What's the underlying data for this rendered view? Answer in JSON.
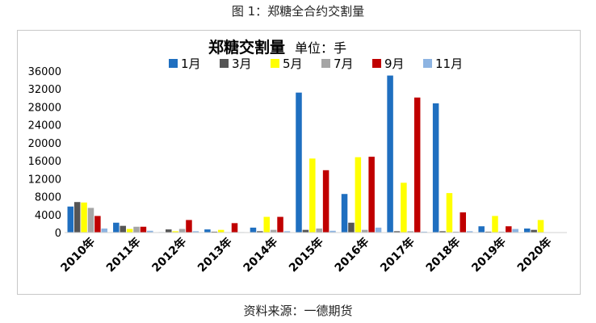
{
  "figure_title": "图 1：郑糖全合约交割量",
  "source": "资料来源：一德期货",
  "chart_data": {
    "type": "bar",
    "title": "郑糖交割量",
    "subtitle": "单位：手",
    "xlabel": "",
    "ylabel": "",
    "ylim": [
      0,
      36000
    ],
    "yticks": [
      0,
      4000,
      8000,
      12000,
      16000,
      20000,
      24000,
      28000,
      32000,
      36000
    ],
    "grid": false,
    "legend_position": "top",
    "categories": [
      "2010年",
      "2011年",
      "2012年",
      "2013年",
      "2014年",
      "2015年",
      "2016年",
      "2017年",
      "2018年",
      "2019年",
      "2020年"
    ],
    "series": [
      {
        "name": "1月",
        "color": "#1f6fc0",
        "values": [
          5800,
          2200,
          100,
          700,
          1100,
          31200,
          8600,
          35000,
          28800,
          1400,
          900
        ]
      },
      {
        "name": "3月",
        "color": "#555555",
        "values": [
          6800,
          1500,
          700,
          200,
          300,
          600,
          2200,
          300,
          300,
          200,
          600
        ]
      },
      {
        "name": "5月",
        "color": "#ffff00",
        "values": [
          6700,
          800,
          300,
          600,
          3500,
          16500,
          16800,
          11100,
          8800,
          3700,
          2800
        ]
      },
      {
        "name": "7月",
        "color": "#a5a5a5",
        "values": [
          5500,
          1300,
          800,
          100,
          600,
          900,
          600,
          300,
          200,
          200,
          0
        ]
      },
      {
        "name": "9月",
        "color": "#c00000",
        "values": [
          3700,
          1300,
          2800,
          2100,
          3500,
          13900,
          16900,
          30100,
          4500,
          1400,
          0
        ]
      },
      {
        "name": "11月",
        "color": "#8db4e2",
        "values": [
          900,
          400,
          300,
          100,
          300,
          400,
          1100,
          200,
          300,
          800,
          0
        ]
      }
    ]
  }
}
